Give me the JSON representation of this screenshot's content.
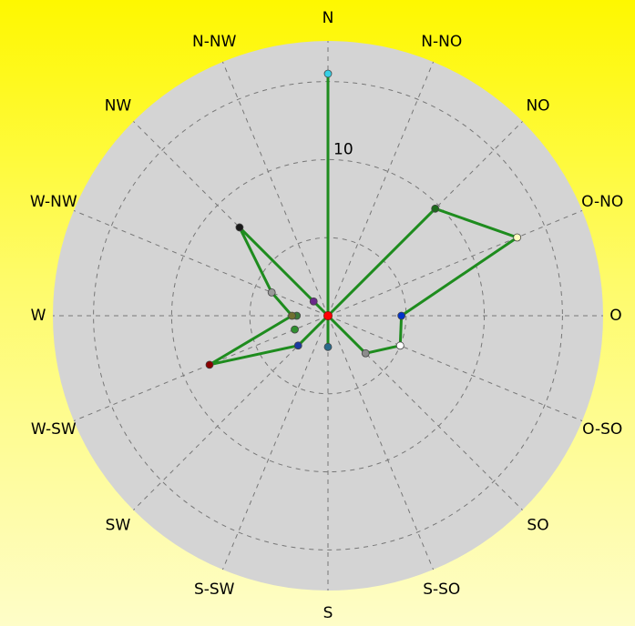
{
  "chart_data": {
    "type": "radar",
    "title": "",
    "directions": [
      "N",
      "N-NO",
      "NO",
      "O-NO",
      "O",
      "O-SO",
      "SO",
      "S-SO",
      "S",
      "S-SW",
      "SW",
      "W-SW",
      "W",
      "W-NW",
      "NW",
      "N-NW"
    ],
    "values": [
      15.5,
      0,
      9.7,
      13.1,
      4.7,
      5.0,
      3.4,
      0,
      2.0,
      0,
      2.7,
      8.2,
      2.3,
      3.9,
      8.0,
      0
    ],
    "point_colors": [
      "#36d0e6",
      "#00aa00",
      "#1e6b1e",
      "#ffffc0",
      "#0033cc",
      "#ffffff",
      "#8c8c8c",
      "#00aa00",
      "#2a6a8a",
      "#00aa00",
      "#1a3aa0",
      "#8a0000",
      "#707030",
      "#9a9a9a",
      "#1a1a1a",
      "#00aa00"
    ],
    "extra_points": [
      {
        "direction": "W",
        "value": 2.0,
        "color": "#3a7a3a"
      },
      {
        "direction": "W-SW",
        "value": 2.3,
        "color": "#2f8f2f"
      },
      {
        "direction": "NW",
        "value": 1.3,
        "color": "#6a2a8a"
      }
    ],
    "center_point_color": "#ff0000",
    "rings": [
      5,
      10,
      15
    ],
    "r_max": 17.6,
    "tick_labels": [
      {
        "value": 10,
        "label": "10"
      }
    ],
    "line_color": "#1e8c1e",
    "plot_bg": "#d4d4d4"
  }
}
